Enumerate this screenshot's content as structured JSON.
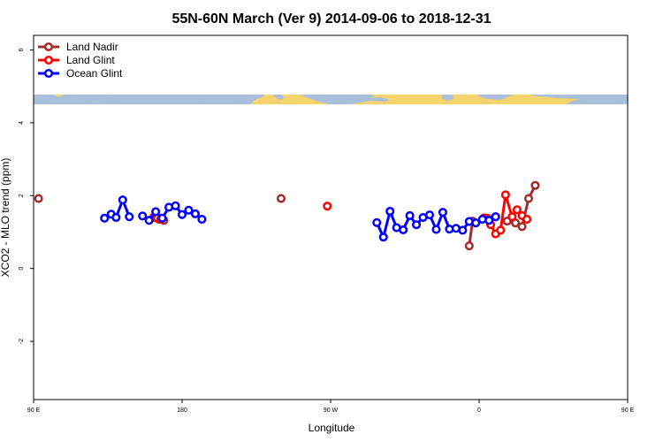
{
  "chart_data": {
    "type": "line",
    "title": "55N-60N March (Ver 9)   2014-09-06 to 2018-12-31",
    "xlabel": "Longitude",
    "ylabel": "XCO2 - MLO trend (ppm)",
    "xlim": [
      90,
      450
    ],
    "ylim": [
      -3.6,
      6.4
    ],
    "x_ticks": [
      {
        "value": 90,
        "label": "90 E"
      },
      {
        "value": 180,
        "label": "180"
      },
      {
        "value": 270,
        "label": "90 W"
      },
      {
        "value": 360,
        "label": "0"
      },
      {
        "value": 450,
        "label": "90 E"
      },
      {
        "value": 540,
        "label": "180"
      }
    ],
    "y_ticks": [
      -2,
      0,
      2,
      4,
      6
    ],
    "legend_position": "top-left",
    "series": [
      {
        "name": "Land Nadir",
        "color": "#a52a2a",
        "segments": [
          [
            [
              93,
              1.92
            ]
          ],
          [
            [
              163,
              1.4
            ],
            [
              166,
              1.35
            ],
            [
              169,
              1.32
            ]
          ],
          [
            [
              240,
              1.92
            ]
          ],
          [
            [
              354,
              0.62
            ],
            [
              356,
              1.3
            ]
          ],
          [
            [
              365,
              1.38
            ],
            [
              370,
              1.42
            ]
          ],
          [
            [
              377,
              1.3
            ],
            [
              382,
              1.25
            ],
            [
              386,
              1.15
            ],
            [
              390,
              1.92
            ],
            [
              394,
              2.28
            ]
          ],
          [
            [
              487,
              1.92
            ]
          ]
        ]
      },
      {
        "name": "Land Glint",
        "color": "#ff0000",
        "segments": [
          [
            [
              163,
              1.42
            ],
            [
              165,
              1.38
            ],
            [
              167,
              1.35
            ]
          ],
          [
            [
              268,
              1.71
            ]
          ],
          [
            [
              363,
              1.39
            ],
            [
              367,
              1.2
            ],
            [
              370,
              0.95
            ],
            [
              373,
              1.05
            ],
            [
              376,
              2.02
            ],
            [
              380,
              1.42
            ],
            [
              383,
              1.61
            ],
            [
              386,
              1.45
            ],
            [
              389,
              1.35
            ]
          ]
        ]
      },
      {
        "name": "Ocean Glint",
        "color": "#0000ff",
        "segments": [
          [
            [
              133,
              1.38
            ],
            [
              137,
              1.49
            ],
            [
              140,
              1.4
            ],
            [
              144,
              1.88
            ],
            [
              148,
              1.42
            ]
          ],
          [
            [
              156,
              1.44
            ],
            [
              160,
              1.32
            ],
            [
              164,
              1.56
            ],
            [
              168,
              1.38
            ],
            [
              172,
              1.68
            ],
            [
              176,
              1.72
            ],
            [
              180,
              1.48
            ],
            [
              184,
              1.6
            ],
            [
              188,
              1.5
            ],
            [
              192,
              1.35
            ]
          ],
          [
            [
              298,
              1.26
            ],
            [
              302,
              0.86
            ],
            [
              306,
              1.57
            ],
            [
              310,
              1.12
            ],
            [
              314,
              1.06
            ],
            [
              318,
              1.45
            ],
            [
              322,
              1.2
            ],
            [
              326,
              1.4
            ],
            [
              330,
              1.47
            ],
            [
              334,
              1.07
            ],
            [
              338,
              1.54
            ],
            [
              342,
              1.08
            ],
            [
              346,
              1.1
            ],
            [
              350,
              1.05
            ],
            [
              354,
              1.29
            ],
            [
              358,
              1.25
            ],
            [
              362,
              1.35
            ],
            [
              366,
              1.32
            ],
            [
              370,
              1.42
            ]
          ],
          [
            [
              470,
              1.4
            ],
            [
              474,
              1.5
            ],
            [
              478,
              1.42
            ],
            [
              482,
              1.87
            ],
            [
              486,
              1.45
            ]
          ],
          [
            [
              488,
              1.45
            ]
          ]
        ]
      }
    ]
  }
}
